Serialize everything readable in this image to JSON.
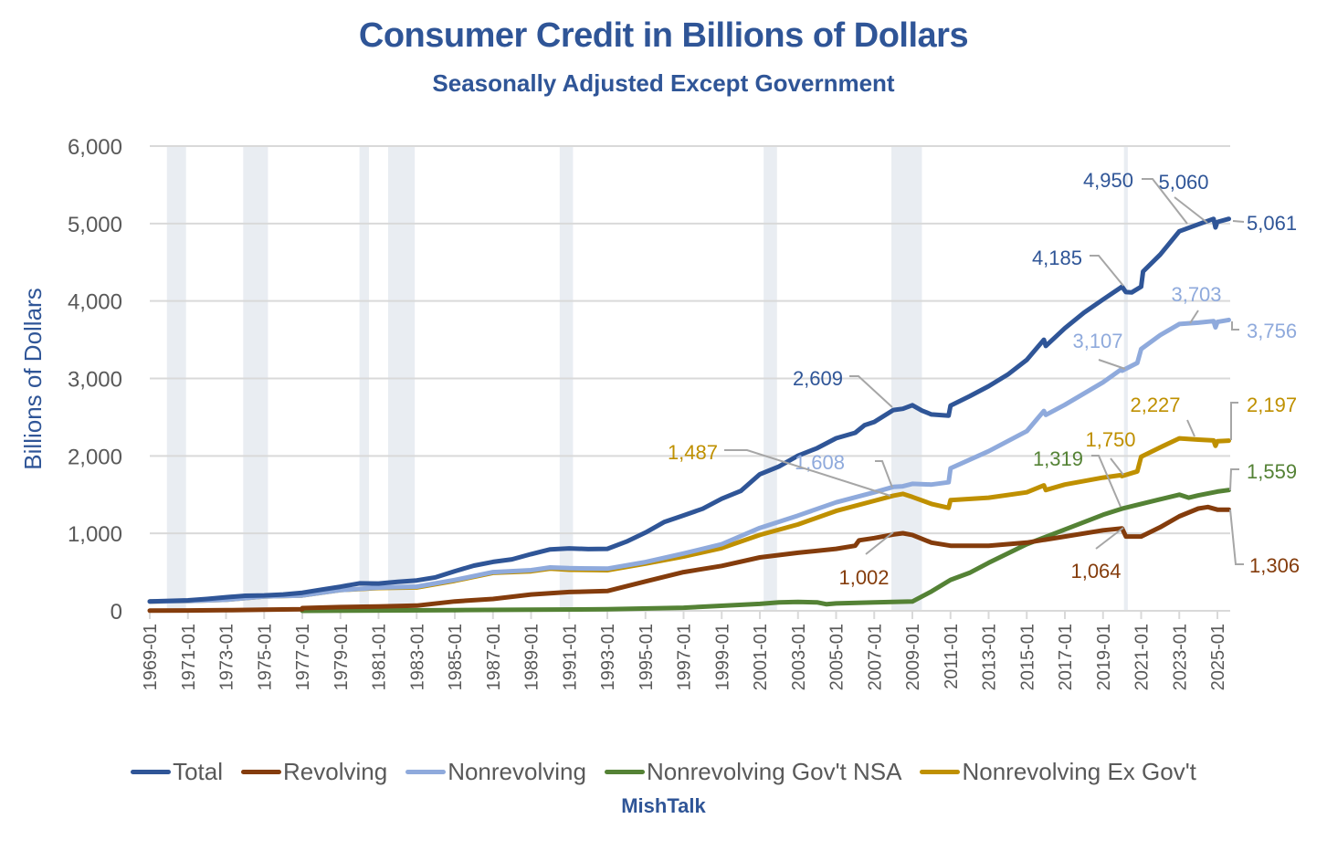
{
  "chart_data": {
    "type": "line",
    "title": "Consumer Credit in Billions of Dollars",
    "subtitle": "Seasonally Adjusted Except Government",
    "xlabel": "",
    "ylabel": "Billions of Dollars",
    "ylim": [
      0,
      6000
    ],
    "xlim": [
      1969.0,
      2025.6
    ],
    "grid": true,
    "legend_position": "bottom",
    "source": "MishTalk",
    "yticks": [
      "0",
      "1,000",
      "2,000",
      "3,000",
      "4,000",
      "5,000",
      "6,000"
    ],
    "ytick_values": [
      0,
      1000,
      2000,
      3000,
      4000,
      5000,
      6000
    ],
    "xticks": [
      "1969-01",
      "1971-01",
      "1973-01",
      "1975-01",
      "1977-01",
      "1979-01",
      "1981-01",
      "1983-01",
      "1985-01",
      "1987-01",
      "1989-01",
      "1991-01",
      "1993-01",
      "1995-01",
      "1997-01",
      "1999-01",
      "2001-01",
      "2003-01",
      "2005-01",
      "2007-01",
      "2009-01",
      "2011-01",
      "2013-01",
      "2015-01",
      "2017-01",
      "2019-01",
      "2021-01",
      "2023-01",
      "2025-01"
    ],
    "recessions": [
      [
        1969.9,
        1970.9
      ],
      [
        1973.9,
        1975.2
      ],
      [
        1980.0,
        1980.5
      ],
      [
        1981.5,
        1982.9
      ],
      [
        1990.5,
        1991.2
      ],
      [
        2001.2,
        2001.9
      ],
      [
        2007.9,
        2009.5
      ],
      [
        2020.1,
        2020.3
      ]
    ],
    "series": [
      {
        "name": "Total",
        "color": "#2F5597",
        "x": [
          1969,
          1970,
          1971,
          1972,
          1973,
          1974,
          1975,
          1976,
          1977,
          1978,
          1979,
          1980,
          1981,
          1982,
          1983,
          1984,
          1985,
          1986,
          1987,
          1988,
          1989,
          1990,
          1991,
          1992,
          1993,
          1994,
          1995,
          1996,
          1997,
          1998,
          1999,
          2000,
          2001,
          2002,
          2003,
          2004,
          2005,
          2006,
          2006.5,
          2007,
          2008,
          2008.5,
          2009,
          2009.5,
          2010,
          2010.9,
          2011,
          2012,
          2013,
          2014,
          2015,
          2015.9,
          2016,
          2017,
          2018,
          2019,
          2020,
          2020.2,
          2020.5,
          2021,
          2021.1,
          2022,
          2023,
          2024,
          2024.8,
          2024.9,
          2025,
          2025.6
        ],
        "values": [
          121,
          128,
          136,
          153,
          176,
          195,
          199,
          211,
          233,
          274,
          311,
          355,
          352,
          375,
          392,
          433,
          512,
          584,
          632,
          665,
          732,
          793,
          806,
          797,
          800,
          893,
          1010,
          1148,
          1232,
          1318,
          1447,
          1548,
          1763,
          1864,
          2003,
          2099,
          2228,
          2299,
          2398,
          2439,
          2592,
          2609,
          2655,
          2585,
          2536,
          2520,
          2650,
          2770,
          2900,
          3050,
          3240,
          3500,
          3420,
          3650,
          3850,
          4020,
          4185,
          4115,
          4110,
          4185,
          4380,
          4600,
          4900,
          4990,
          5060,
          4950,
          5020,
          5061
        ]
      },
      {
        "name": "Revolving",
        "color": "#843C0C",
        "x": [
          1969,
          1971,
          1973,
          1975,
          1977,
          1977.01,
          1979,
          1981,
          1983,
          1985,
          1987,
          1989,
          1991,
          1993,
          1995,
          1997,
          1999,
          2001,
          2003,
          2005,
          2006,
          2006.2,
          2007,
          2008,
          2008.5,
          2009,
          2010,
          2011,
          2013,
          2015,
          2017,
          2019,
          2020,
          2020.2,
          2021,
          2022,
          2023,
          2024,
          2024.5,
          2025,
          2025.6
        ],
        "values": [
          2,
          5,
          8,
          14,
          20,
          35,
          48,
          57,
          67,
          122,
          153,
          211,
          243,
          256,
          380,
          500,
          580,
          690,
          750,
          800,
          840,
          910,
          940,
          985,
          1002,
          980,
          880,
          840,
          840,
          880,
          960,
          1040,
          1064,
          960,
          960,
          1080,
          1220,
          1320,
          1340,
          1306,
          1306
        ]
      },
      {
        "name": "Nonrevolving",
        "color": "#8FAADC",
        "x": [
          1969,
          1971,
          1973,
          1975,
          1977,
          1979,
          1981,
          1983,
          1985,
          1987,
          1989,
          1990,
          1991,
          1993,
          1995,
          1997,
          1999,
          2001,
          2003,
          2005,
          2007,
          2008,
          2008.5,
          2009,
          2010,
          2010.9,
          2011,
          2013,
          2015,
          2015.9,
          2016,
          2017,
          2019,
          2019.9,
          2020,
          2020.8,
          2021,
          2022,
          2023,
          2024,
          2024.8,
          2024.9,
          2025,
          2025.6
        ],
        "values": [
          120,
          126,
          143,
          185,
          198,
          268,
          300,
          312,
          398,
          500,
          525,
          560,
          550,
          545,
          630,
          740,
          860,
          1070,
          1230,
          1400,
          1530,
          1600,
          1608,
          1640,
          1630,
          1660,
          1840,
          2060,
          2320,
          2580,
          2530,
          2660,
          2950,
          3107,
          3100,
          3200,
          3380,
          3560,
          3703,
          3720,
          3740,
          3660,
          3730,
          3756
        ]
      },
      {
        "name": "Nonrevolving Gov't NSA",
        "color": "#548235",
        "x": [
          1977,
          1981,
          1985,
          1989,
          1993,
          1997,
          2001,
          2002,
          2003,
          2004,
          2004.5,
          2005,
          2007,
          2008,
          2009,
          2010,
          2011,
          2012,
          2013,
          2015,
          2017,
          2019,
          2020,
          2021,
          2022,
          2023,
          2023.5,
          2024,
          2025,
          2025.6
        ],
        "values": [
          0,
          5,
          10,
          15,
          20,
          40,
          90,
          110,
          115,
          110,
          85,
          95,
          110,
          115,
          120,
          250,
          400,
          490,
          620,
          860,
          1050,
          1240,
          1319,
          1380,
          1440,
          1500,
          1460,
          1490,
          1540,
          1559
        ]
      },
      {
        "name": "Nonrevolving Ex Gov't",
        "color": "#BF9000",
        "x": [
          1969,
          1971,
          1973,
          1975,
          1977,
          1979,
          1981,
          1983,
          1985,
          1987,
          1989,
          1990,
          1991,
          1993,
          1995,
          1997,
          1999,
          2001,
          2003,
          2005,
          2007,
          2008,
          2008.5,
          2009,
          2010,
          2010.9,
          2011,
          2013,
          2015,
          2015.9,
          2016,
          2017,
          2019,
          2019.9,
          2020,
          2020.8,
          2021,
          2022,
          2023,
          2024,
          2024.8,
          2024.9,
          2025,
          2025.6
        ],
        "values": [
          120,
          126,
          143,
          185,
          198,
          268,
          295,
          302,
          388,
          490,
          510,
          545,
          530,
          525,
          610,
          700,
          810,
          980,
          1115,
          1290,
          1420,
          1487,
          1510,
          1470,
          1380,
          1330,
          1430,
          1460,
          1530,
          1620,
          1560,
          1630,
          1720,
          1750,
          1740,
          1800,
          1990,
          2110,
          2227,
          2210,
          2200,
          2130,
          2190,
          2197
        ]
      }
    ],
    "annotations": [
      {
        "label": "5,061",
        "series": "Total",
        "x": 2025.6,
        "y": 5061
      },
      {
        "label": "5,060",
        "series": "Total",
        "x": 2024.8,
        "y": 5060
      },
      {
        "label": "4,950",
        "series": "Total",
        "x": 2023.2,
        "y": 4950
      },
      {
        "label": "4,185",
        "series": "Total",
        "x": 2020.0,
        "y": 4185
      },
      {
        "label": "2,609",
        "series": "Total",
        "x": 2008.5,
        "y": 2609
      },
      {
        "label": "3,756",
        "series": "Nonrevolving",
        "x": 2025.6,
        "y": 3756
      },
      {
        "label": "3,703",
        "series": "Nonrevolving",
        "x": 2023.0,
        "y": 3703
      },
      {
        "label": "3,107",
        "series": "Nonrevolving",
        "x": 2019.9,
        "y": 3107
      },
      {
        "label": "1,608",
        "series": "Nonrevolving",
        "x": 2008.5,
        "y": 1608
      },
      {
        "label": "2,197",
        "series": "Nonrevolving Ex Gov't",
        "x": 2025.6,
        "y": 2197
      },
      {
        "label": "2,227",
        "series": "Nonrevolving Ex Gov't",
        "x": 2023.0,
        "y": 2227
      },
      {
        "label": "1,750",
        "series": "Nonrevolving Ex Gov't",
        "x": 2019.9,
        "y": 1750
      },
      {
        "label": "1,487",
        "series": "Nonrevolving Ex Gov't",
        "x": 2008.0,
        "y": 1487
      },
      {
        "label": "1,559",
        "series": "Nonrevolving Gov't NSA",
        "x": 2025.6,
        "y": 1559
      },
      {
        "label": "1,319",
        "series": "Nonrevolving Gov't NSA",
        "x": 2020.0,
        "y": 1319
      },
      {
        "label": "1,306",
        "series": "Revolving",
        "x": 2025.6,
        "y": 1306
      },
      {
        "label": "1,064",
        "series": "Revolving",
        "x": 2020.0,
        "y": 1064
      },
      {
        "label": "1,002",
        "series": "Revolving",
        "x": 2008.5,
        "y": 1002
      }
    ]
  }
}
